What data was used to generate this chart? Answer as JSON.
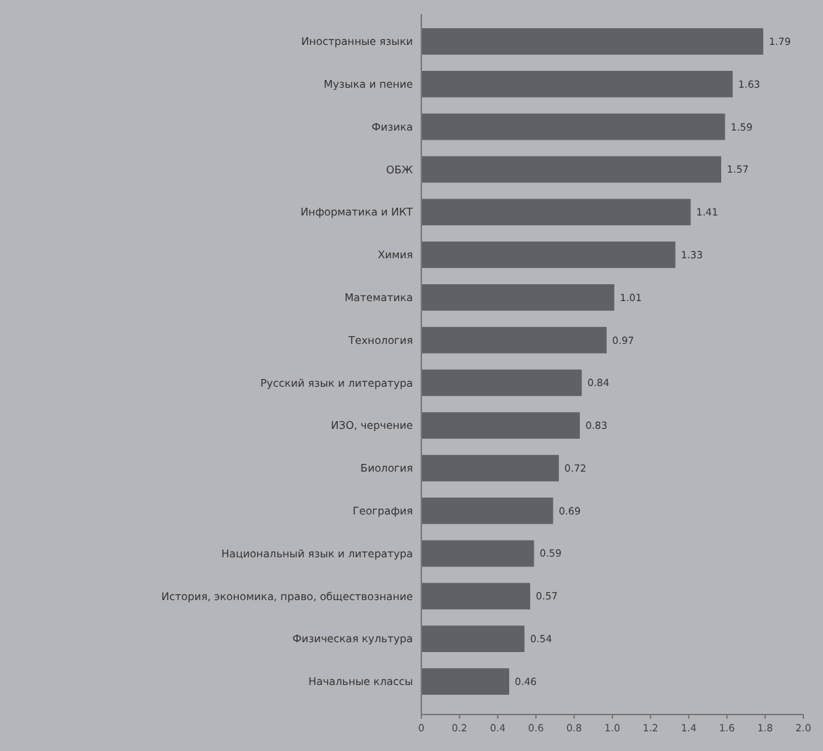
{
  "chart_data": {
    "type": "bar",
    "orientation": "horizontal",
    "categories": [
      "Иностранные языки",
      "Музыка и пение",
      "Физика",
      "ОБЖ",
      "Информатика и ИКТ",
      "Химия",
      "Математика",
      "Технология",
      "Русский язык и литература",
      "ИЗО, черчение",
      "Биология",
      "География",
      "Национальный язык и литература",
      "История, экономика, право, обществознание",
      "Физическая культура",
      "Начальные классы"
    ],
    "values": [
      1.79,
      1.63,
      1.59,
      1.57,
      1.41,
      1.33,
      1.01,
      0.97,
      0.84,
      0.83,
      0.72,
      0.69,
      0.59,
      0.57,
      0.54,
      0.46
    ],
    "color": "#606166",
    "xlim": [
      0,
      2
    ],
    "xticks": [
      0,
      {
        "value": 0.2,
        "label": "0.2"
      },
      {
        "value": 0.4,
        "label": "0.4"
      },
      {
        "value": 0.6,
        "label": "0.6"
      },
      {
        "value": 0.8,
        "label": "0.8"
      },
      {
        "value": 1,
        "label": "1.0"
      },
      {
        "value": 1.2,
        "label": "1.2"
      },
      {
        "value": 1.4,
        "label": "1.4"
      },
      {
        "value": 1.6,
        "label": "1.6"
      },
      {
        "value": 1.8,
        "label": "1.8"
      },
      {
        "value": 2,
        "label": "2.0"
      }
    ],
    "data_labels": true,
    "grid": false
  }
}
